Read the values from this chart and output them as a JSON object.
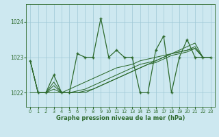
{
  "x": [
    0,
    1,
    2,
    3,
    4,
    5,
    6,
    7,
    8,
    9,
    10,
    11,
    12,
    13,
    14,
    15,
    16,
    17,
    18,
    19,
    20,
    21,
    22,
    23
  ],
  "line_main": [
    1022.9,
    1022.0,
    1022.0,
    1022.5,
    1022.0,
    1022.0,
    1023.1,
    1023.0,
    1023.0,
    1024.1,
    1023.0,
    1023.2,
    1023.0,
    1023.0,
    1022.0,
    1022.0,
    1023.2,
    1023.6,
    1022.0,
    1023.0,
    1023.5,
    1023.0,
    1023.0,
    1023.0
  ],
  "line_t1": [
    1022.9,
    1022.0,
    1022.0,
    1022.3,
    1022.0,
    1022.1,
    1022.2,
    1022.3,
    1022.4,
    1022.5,
    1022.6,
    1022.7,
    1022.75,
    1022.8,
    1022.9,
    1022.95,
    1023.0,
    1023.05,
    1023.1,
    1023.15,
    1023.2,
    1023.25,
    1023.0,
    1023.0
  ],
  "line_t2": [
    1022.9,
    1022.0,
    1022.0,
    1022.2,
    1022.0,
    1022.0,
    1022.05,
    1022.1,
    1022.2,
    1022.3,
    1022.4,
    1022.5,
    1022.6,
    1022.7,
    1022.8,
    1022.85,
    1022.9,
    1023.0,
    1023.1,
    1023.15,
    1023.2,
    1023.3,
    1023.0,
    1023.0
  ],
  "line_t3": [
    1022.9,
    1022.0,
    1022.0,
    1022.1,
    1022.0,
    1022.0,
    1022.0,
    1022.05,
    1022.1,
    1022.2,
    1022.3,
    1022.4,
    1022.5,
    1022.6,
    1022.7,
    1022.8,
    1022.85,
    1022.95,
    1023.05,
    1023.1,
    1023.15,
    1023.25,
    1023.0,
    1023.0
  ],
  "line_t4": [
    1022.0,
    1022.0,
    1022.0,
    1022.0,
    1022.0,
    1022.0,
    1022.0,
    1022.0,
    1022.1,
    1022.2,
    1022.3,
    1022.4,
    1022.5,
    1022.6,
    1022.7,
    1022.8,
    1022.9,
    1023.0,
    1023.1,
    1023.2,
    1023.3,
    1023.4,
    1023.0,
    1023.0
  ],
  "color": "#2d6a2d",
  "bg_color": "#cde8f0",
  "grid_color": "#9ec8d5",
  "xlabel": "Graphe pression niveau de la mer (hPa)",
  "ylim": [
    1021.6,
    1024.5
  ],
  "xlim": [
    -0.5,
    23.5
  ],
  "yticks": [
    1022,
    1023,
    1024
  ],
  "xticks": [
    0,
    1,
    2,
    3,
    4,
    5,
    6,
    7,
    8,
    9,
    10,
    11,
    12,
    13,
    14,
    15,
    16,
    17,
    18,
    19,
    20,
    21,
    22,
    23
  ]
}
